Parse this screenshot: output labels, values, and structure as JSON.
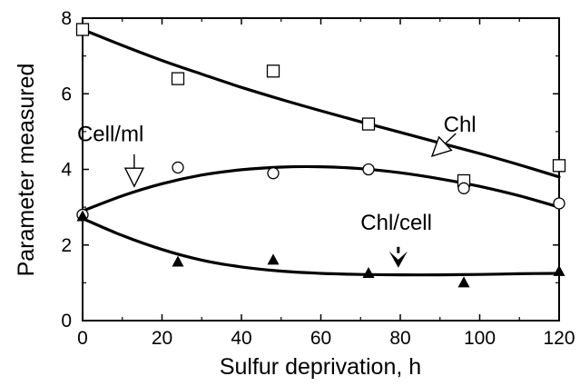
{
  "chart_data": {
    "type": "scatter",
    "xlabel": "Sulfur deprivation,  h",
    "ylabel": "Parameter measured",
    "xlim": [
      0,
      120
    ],
    "ylim": [
      0,
      8
    ],
    "x_ticks": [
      0,
      20,
      40,
      60,
      80,
      100,
      120
    ],
    "y_ticks": [
      0,
      2,
      4,
      6,
      8
    ],
    "grid": false,
    "series": [
      {
        "name": "Chl",
        "marker": "square-open",
        "x": [
          0,
          24,
          48,
          72,
          96,
          120
        ],
        "y": [
          7.7,
          6.4,
          6.6,
          5.2,
          3.7,
          4.1
        ],
        "fit": [
          [
            0,
            7.7
          ],
          [
            10,
            7.28
          ],
          [
            20,
            6.88
          ],
          [
            30,
            6.52
          ],
          [
            40,
            6.17
          ],
          [
            50,
            5.85
          ],
          [
            60,
            5.55
          ],
          [
            70,
            5.26
          ],
          [
            80,
            4.98
          ],
          [
            90,
            4.7
          ],
          [
            100,
            4.42
          ],
          [
            110,
            4.12
          ],
          [
            120,
            3.8
          ]
        ]
      },
      {
        "name": "Cell/ml",
        "marker": "circle-open",
        "x": [
          0,
          24,
          48,
          72,
          96,
          120
        ],
        "y": [
          2.8,
          4.05,
          3.9,
          4.0,
          3.5,
          3.1
        ],
        "fit": [
          [
            0,
            2.9
          ],
          [
            10,
            3.3
          ],
          [
            20,
            3.62
          ],
          [
            30,
            3.85
          ],
          [
            40,
            3.99
          ],
          [
            50,
            4.06
          ],
          [
            60,
            4.07
          ],
          [
            70,
            4.02
          ],
          [
            80,
            3.91
          ],
          [
            90,
            3.75
          ],
          [
            100,
            3.55
          ],
          [
            110,
            3.3
          ],
          [
            120,
            3.0
          ]
        ]
      },
      {
        "name": "Chl/cell",
        "marker": "triangle-filled",
        "x": [
          0,
          24,
          48,
          72,
          96,
          120
        ],
        "y": [
          2.75,
          1.55,
          1.6,
          1.25,
          1.0,
          1.3
        ],
        "fit": [
          [
            0,
            2.7
          ],
          [
            10,
            2.25
          ],
          [
            20,
            1.88
          ],
          [
            30,
            1.6
          ],
          [
            40,
            1.42
          ],
          [
            50,
            1.31
          ],
          [
            60,
            1.25
          ],
          [
            70,
            1.22
          ],
          [
            80,
            1.21
          ],
          [
            90,
            1.21
          ],
          [
            100,
            1.22
          ],
          [
            110,
            1.24
          ],
          [
            120,
            1.25
          ]
        ]
      }
    ],
    "annotations": [
      {
        "label": "Chl",
        "arrow": "open",
        "text_at": [
          95,
          5.0
        ],
        "arrow_tip": [
          88,
          4.35
        ],
        "arrow_from": [
          94,
          4.95
        ]
      },
      {
        "label": "Cell/ml",
        "arrow": "open",
        "text_at": [
          7,
          4.75
        ],
        "arrow_tip": [
          13,
          3.55
        ],
        "arrow_from": [
          13,
          4.4
        ]
      },
      {
        "label": "Chl/cell",
        "arrow": "filled",
        "text_at": [
          79,
          2.4
        ],
        "arrow_tip": [
          79.5,
          1.4
        ],
        "arrow_from": [
          79.5,
          1.95
        ]
      }
    ]
  }
}
